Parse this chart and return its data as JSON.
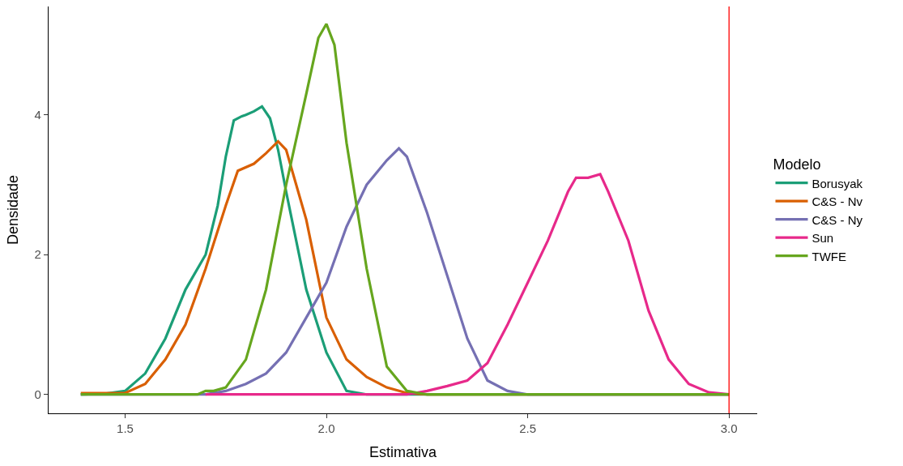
{
  "chart_data": {
    "type": "line",
    "xlabel": "Estimativa",
    "ylabel": "Densidade",
    "legend_title": "Modelo",
    "legend": "right",
    "marker": "none",
    "line_style": "solid",
    "xlim": [
      1.31,
      3.07
    ],
    "ylim": [
      -0.27,
      5.55
    ],
    "xticks": [
      1.5,
      {
        "value": 2,
        "label": "2.0"
      },
      2.5,
      {
        "value": 3,
        "label": "3.0"
      }
    ],
    "yticks": [
      0,
      2,
      4
    ],
    "ref_lines": [
      {
        "axis": "x",
        "value": 3,
        "color": "#ff0000"
      }
    ],
    "series": [
      {
        "name": "Borusyak",
        "color": "#1b9e77",
        "x": [
          1.39,
          1.45,
          1.5,
          1.55,
          1.6,
          1.65,
          1.7,
          1.73,
          1.75,
          1.77,
          1.79,
          1.8,
          1.82,
          1.84,
          1.86,
          1.88,
          1.9,
          1.95,
          2.0,
          2.05,
          2.1,
          3.0
        ],
        "values": [
          0,
          0.01,
          0.05,
          0.3,
          0.8,
          1.5,
          2.0,
          2.7,
          3.4,
          3.92,
          3.98,
          4.0,
          4.05,
          4.12,
          3.95,
          3.5,
          2.9,
          1.5,
          0.6,
          0.05,
          0,
          0
        ]
      },
      {
        "name": "C&S - Nv",
        "color": "#d95f02",
        "x": [
          1.39,
          1.5,
          1.55,
          1.6,
          1.65,
          1.7,
          1.75,
          1.78,
          1.82,
          1.85,
          1.88,
          1.9,
          1.95,
          2.0,
          2.05,
          2.1,
          2.15,
          2.2,
          2.25,
          3.0
        ],
        "values": [
          0.02,
          0.02,
          0.15,
          0.5,
          1.0,
          1.8,
          2.7,
          3.2,
          3.3,
          3.45,
          3.62,
          3.5,
          2.5,
          1.1,
          0.5,
          0.25,
          0.1,
          0.02,
          0,
          0
        ]
      },
      {
        "name": "C&S - Ny",
        "color": "#7570b3",
        "x": [
          1.39,
          1.7,
          1.75,
          1.8,
          1.85,
          1.9,
          1.95,
          2.0,
          2.05,
          2.1,
          2.15,
          2.18,
          2.2,
          2.25,
          2.3,
          2.35,
          2.4,
          2.45,
          2.5,
          3.0
        ],
        "values": [
          0,
          0,
          0.05,
          0.15,
          0.3,
          0.6,
          1.1,
          1.6,
          2.4,
          3.0,
          3.35,
          3.52,
          3.4,
          2.6,
          1.7,
          0.8,
          0.2,
          0.05,
          0,
          0
        ]
      },
      {
        "name": "Sun",
        "color": "#e7298a",
        "x": [
          1.7,
          2.2,
          2.25,
          2.3,
          2.35,
          2.4,
          2.45,
          2.5,
          2.55,
          2.6,
          2.62,
          2.65,
          2.68,
          2.7,
          2.75,
          2.8,
          2.85,
          2.9,
          2.95,
          3.0
        ],
        "values": [
          0,
          0,
          0.05,
          0.12,
          0.2,
          0.45,
          1.0,
          1.6,
          2.2,
          2.9,
          3.1,
          3.1,
          3.15,
          2.9,
          2.2,
          1.2,
          0.5,
          0.15,
          0.03,
          0
        ]
      },
      {
        "name": "TWFE",
        "color": "#66a61e",
        "x": [
          1.39,
          1.68,
          1.7,
          1.72,
          1.75,
          1.8,
          1.85,
          1.9,
          1.95,
          1.98,
          2.0,
          2.02,
          2.05,
          2.1,
          2.15,
          2.2,
          2.25,
          3.0
        ],
        "values": [
          0,
          0,
          0.05,
          0.05,
          0.1,
          0.5,
          1.5,
          3.0,
          4.3,
          5.1,
          5.3,
          5.0,
          3.6,
          1.8,
          0.4,
          0.05,
          0,
          0
        ]
      }
    ]
  }
}
